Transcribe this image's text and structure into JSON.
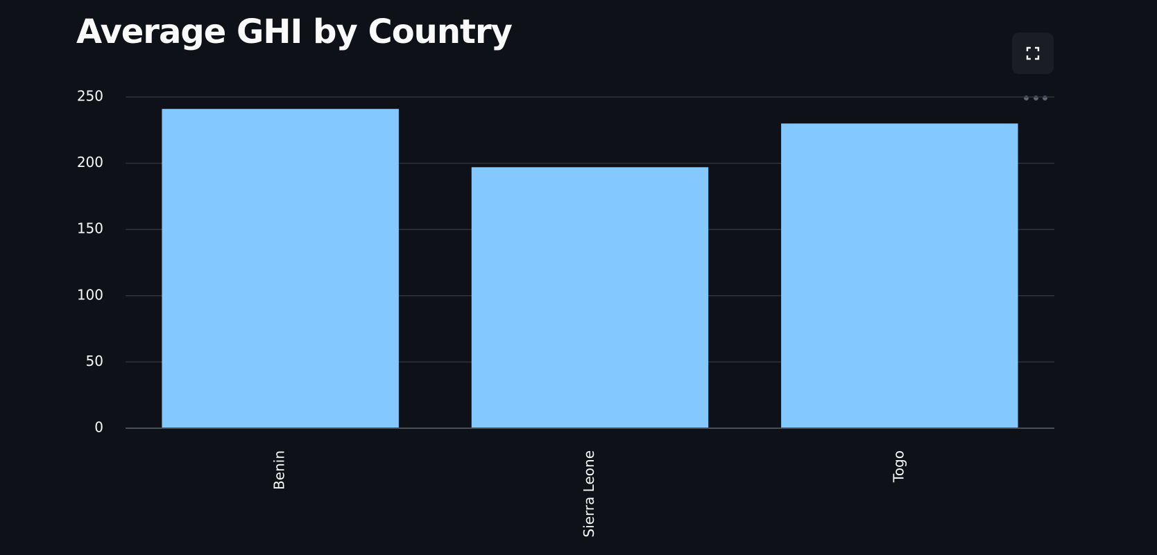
{
  "page": {
    "title": "Average GHI by Country"
  },
  "toolbar": {
    "fullscreen_icon": "expand-icon",
    "menu_icon": "more-horizontal-icon"
  },
  "colors": {
    "background": "#0e1117",
    "bar": "#83c9ff",
    "grid": "#31343c",
    "axis": "#4a4e57",
    "text": "#fafafa"
  },
  "chart_data": {
    "type": "bar",
    "title": "Average GHI by Country",
    "xlabel": "",
    "ylabel": "",
    "categories": [
      "Benin",
      "Sierra Leone",
      "Togo"
    ],
    "values": [
      241,
      197,
      230
    ],
    "ylim": [
      0,
      250
    ],
    "yticks": [
      0,
      50,
      100,
      150,
      200,
      250
    ],
    "grid": true,
    "x_label_rotation": "vertical"
  }
}
